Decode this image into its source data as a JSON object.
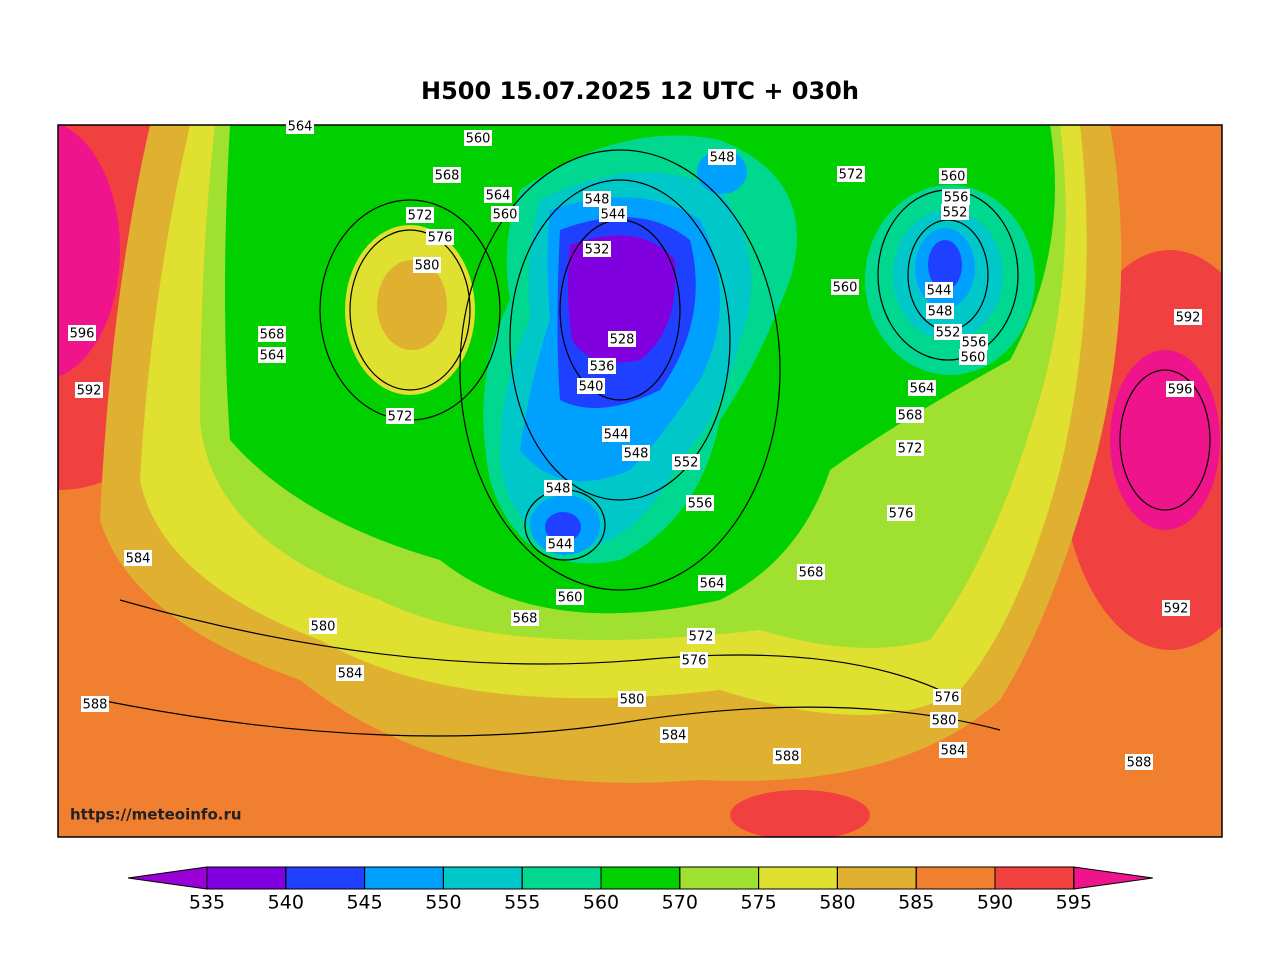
{
  "title": "H500  15.07.2025 12 UTC + 030h",
  "watermark": "https://meteoinfo.ru",
  "colorbar": {
    "ticks": [
      535,
      540,
      545,
      550,
      555,
      560,
      570,
      575,
      580,
      585,
      590,
      595
    ],
    "colors": [
      "#9a00d8",
      "#8000e0",
      "#2040ff",
      "#00a0ff",
      "#00c8c8",
      "#00d890",
      "#00d000",
      "#a0e030",
      "#e0e030",
      "#e0b030",
      "#f08030",
      "#f04040",
      "#f0148c"
    ]
  },
  "contour_labels": [
    560,
    568,
    564,
    560,
    572,
    576,
    580,
    548,
    572,
    560,
    556,
    552,
    532,
    544,
    548,
    528,
    536,
    540,
    544,
    548,
    552,
    556,
    548,
    544,
    560,
    544,
    548,
    552,
    556,
    560,
    564,
    568,
    572,
    576,
    568,
    564,
    560,
    568,
    572,
    576,
    580,
    584,
    588,
    576,
    580,
    584,
    588,
    592,
    596,
    592,
    596,
    592,
    568,
    564,
    584,
    580,
    584,
    588,
    572,
    564
  ]
}
